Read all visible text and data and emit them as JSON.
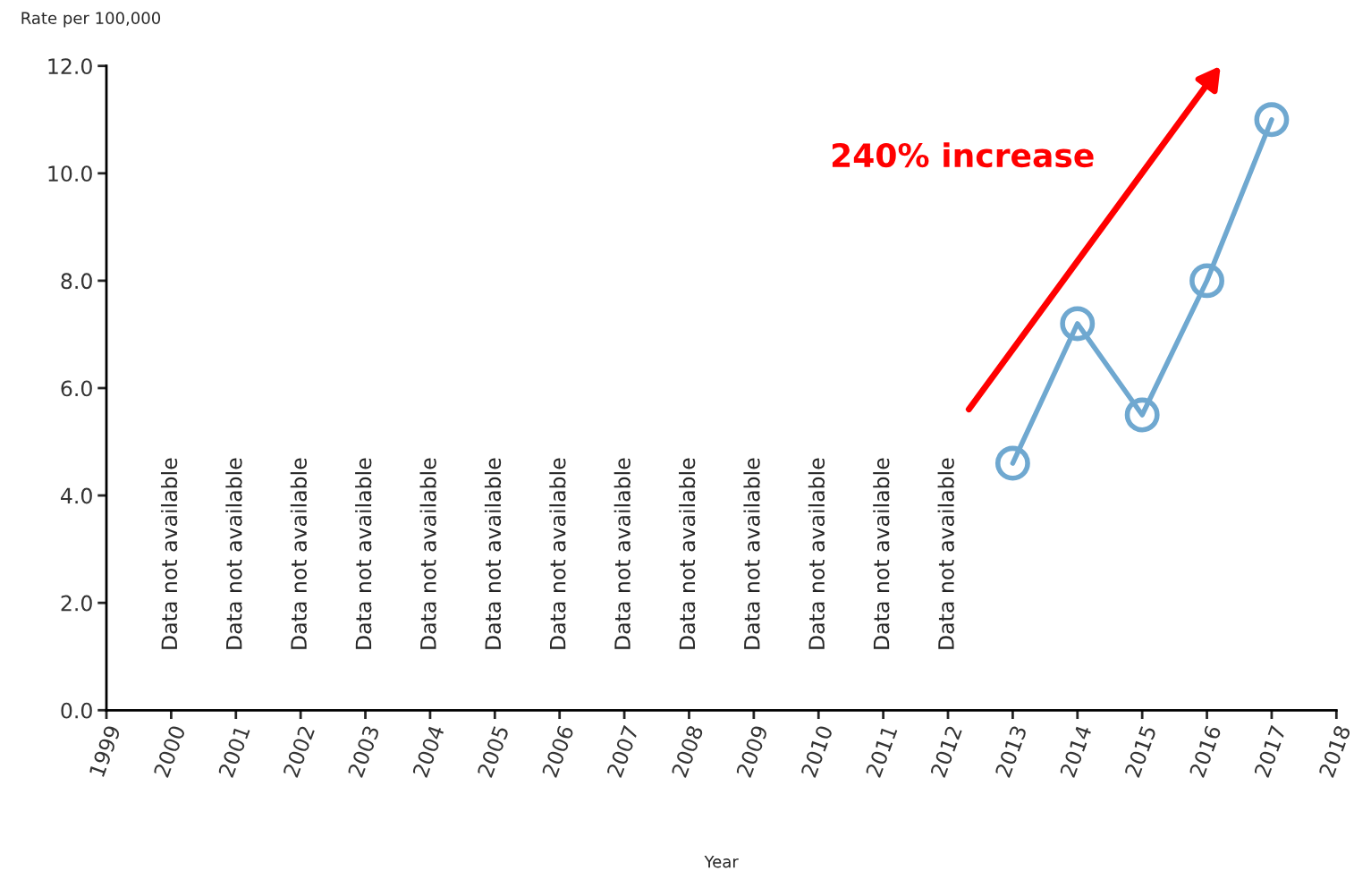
{
  "chart_data": {
    "type": "line",
    "xlabel": "Year",
    "ylabel": "Rate per 100,000",
    "x": [
      2013,
      2014,
      2015,
      2016,
      2017
    ],
    "series": [
      {
        "color": "#6fa8d0",
        "values": [
          4.6,
          7.2,
          5.5,
          8.0,
          11.0
        ]
      }
    ],
    "marker": "circle",
    "xlim": [
      1999,
      2018
    ],
    "xticks": [
      1999,
      2000,
      2001,
      2002,
      2003,
      2004,
      2005,
      2006,
      2007,
      2008,
      2009,
      2010,
      2011,
      2012,
      2013,
      2014,
      2015,
      2016,
      2017,
      2018
    ],
    "ylim": [
      0,
      12
    ],
    "yticks": [
      {
        "value": 0,
        "label": "0.0"
      },
      {
        "value": 2,
        "label": "2.0"
      },
      {
        "value": 4,
        "label": "4.0"
      },
      {
        "value": 6,
        "label": "6.0"
      },
      {
        "value": 8,
        "label": "8.0"
      },
      {
        "value": 10,
        "label": "10.0"
      },
      {
        "value": 12,
        "label": "12.0"
      }
    ],
    "grid": false,
    "legend": false,
    "annotations": [
      "Data not available",
      "Data not available",
      "Data not available",
      "Data not available",
      "Data not available",
      "Data not available",
      "Data not available",
      "Data not available",
      "Data not available",
      "Data not available",
      "Data not available",
      "Data not available",
      "Data not available",
      "240% increase"
    ]
  }
}
